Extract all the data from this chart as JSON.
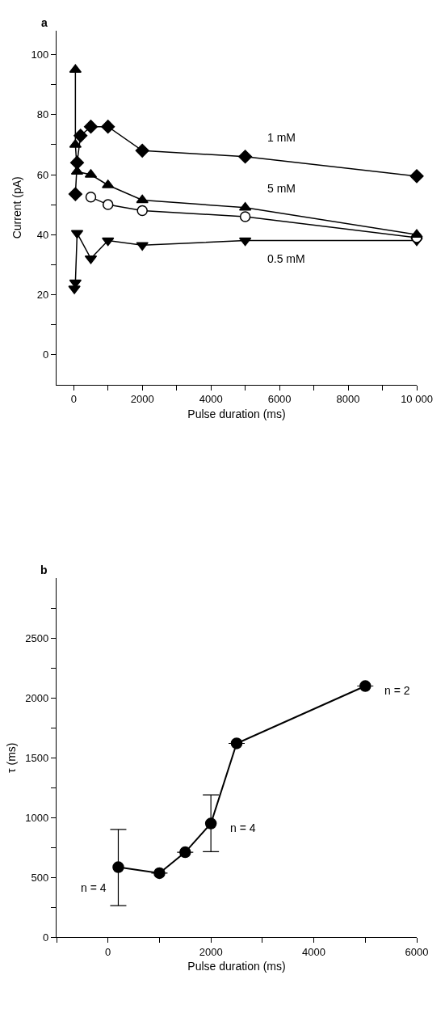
{
  "chart_data": [
    {
      "type": "line",
      "title": "a",
      "xlabel": "Pulse duration (ms)",
      "ylabel": "Current (pA)",
      "xlim": [
        -500,
        10000
      ],
      "ylim": [
        -10,
        108
      ],
      "xticks": [
        0,
        {
          "value": 1000,
          "label": null
        },
        2000,
        {
          "value": 3000,
          "label": null
        },
        4000,
        {
          "value": 5000,
          "label": null
        },
        6000,
        {
          "value": 7000,
          "label": null
        },
        8000,
        {
          "value": 9000,
          "label": null
        },
        {
          "value": 10000,
          "label": "10 000"
        }
      ],
      "yticks": [
        0,
        {
          "value": 10,
          "label": null
        },
        20,
        {
          "value": 30,
          "label": null
        },
        40,
        {
          "value": 50,
          "label": null
        },
        60,
        {
          "value": 70,
          "label": null
        },
        80,
        {
          "value": 90,
          "label": null
        },
        100
      ],
      "series": [
        {
          "name": "1 mM",
          "color": "#000000",
          "marker": "diamond",
          "x": [
            50,
            100,
            200,
            500,
            1000,
            2000,
            5000,
            10000
          ],
          "values": [
            53.5,
            64,
            73,
            76,
            76,
            68,
            66,
            59.5
          ]
        },
        {
          "name": "5 mM",
          "color": "#000000",
          "marker": "triangle-up",
          "x": [
            50,
            50,
            100,
            500,
            1000,
            2000,
            5000,
            10000
          ],
          "values": [
            95,
            70,
            61,
            60,
            56.5,
            51.5,
            49,
            40
          ]
        },
        {
          "color": "#000000",
          "colors": [
            "#ffffff",
            "#ffffff",
            "#ffffff",
            "#ffffff",
            "#ffffff"
          ],
          "marker": "circle",
          "x": [
            500,
            1000,
            2000,
            5000,
            10000
          ],
          "values": [
            52.5,
            50,
            48,
            46,
            39
          ]
        },
        {
          "name": "0.5 mM",
          "color": "#000000",
          "marker": "triangle-down",
          "x": [
            20,
            50,
            100,
            500,
            1000,
            2000,
            5000,
            10000
          ],
          "values": [
            22,
            24,
            40.5,
            32,
            38,
            36.5,
            38,
            38
          ]
        }
      ]
    },
    {
      "type": "line",
      "title": "b",
      "xlabel": "Pulse duration (ms)",
      "ylabel": "τ (ms)",
      "xlim": [
        -1000,
        6000
      ],
      "ylim": [
        0,
        3000
      ],
      "xticks": [
        {
          "value": -1000,
          "label": null
        },
        0,
        {
          "value": 1000,
          "label": null
        },
        2000,
        {
          "value": 3000,
          "label": null
        },
        4000,
        {
          "value": 5000,
          "label": null
        },
        6000
      ],
      "yticks": [
        0,
        {
          "value": 250,
          "label": null
        },
        500,
        {
          "value": 750,
          "label": null
        },
        1000,
        {
          "value": 1250,
          "label": null
        },
        1500,
        {
          "value": 1750,
          "label": null
        },
        2000,
        {
          "value": 2250,
          "label": null
        },
        2500,
        {
          "value": 2750,
          "label": null
        }
      ],
      "marker": "circle",
      "series": [
        {
          "color": "#000000",
          "x": [
            200,
            1000,
            1500,
            2000,
            2500,
            5000
          ],
          "values": [
            585,
            535,
            710,
            950,
            1620,
            2100
          ],
          "errors": [
            [
              263,
              900
            ],
            null,
            null,
            [
              714,
              1189
            ],
            null,
            null
          ]
        }
      ],
      "annotations": [
        {
          "text": "n = 4",
          "x": 200,
          "y": 585
        },
        {
          "text": "n = 4",
          "x": 2000,
          "y": 950
        },
        {
          "text": "n = 2",
          "x": 5000,
          "y": 2100
        }
      ]
    }
  ]
}
